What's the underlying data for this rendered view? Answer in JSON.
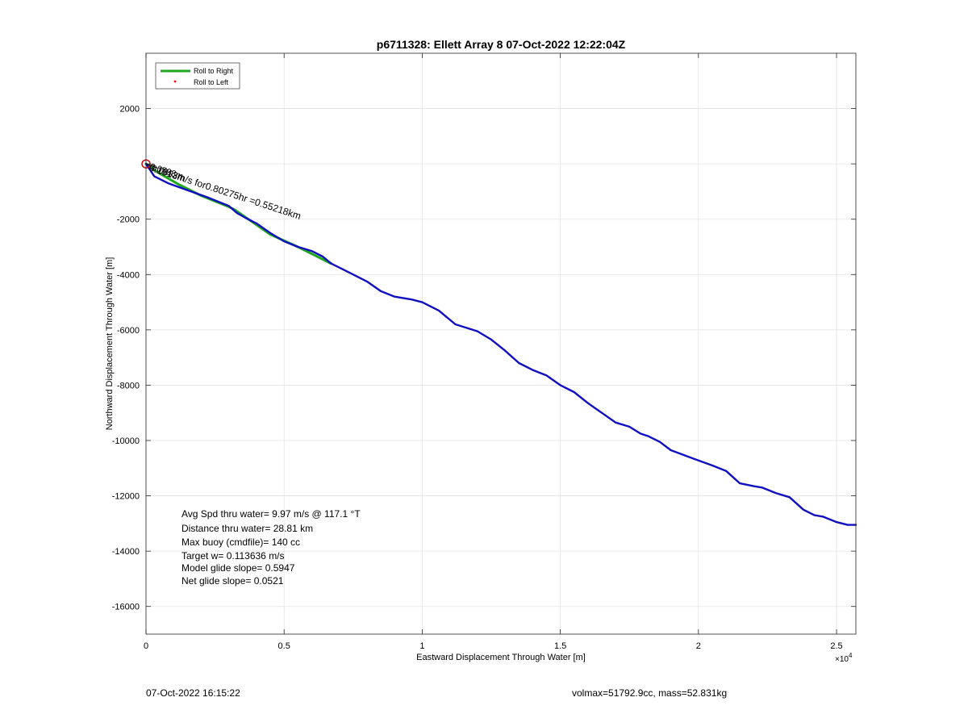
{
  "chart_data": {
    "type": "line",
    "title": "p6711328: Ellett Array 8 07-Oct-2022 12:22:04Z",
    "xlabel": "Eastward Displacement Through Water [m]",
    "ylabel": "Northward Displacement Through Water [m]",
    "x_exponent_label": "×10",
    "x_exponent_power": "4",
    "xlim": [
      0,
      25700
    ],
    "ylim": [
      -17000,
      4000
    ],
    "x_ticks": [
      0,
      5000,
      10000,
      15000,
      20000,
      25000
    ],
    "x_tick_labels": [
      "0",
      "0.5",
      "1",
      "1.5",
      "2",
      "2.5"
    ],
    "y_ticks": [
      -16000,
      -14000,
      -12000,
      -10000,
      -8000,
      -6000,
      -4000,
      -2000,
      0,
      2000
    ],
    "y_tick_labels": [
      "-16000",
      "-14000",
      "-12000",
      "-10000",
      "-8000",
      "-6000",
      "-4000",
      "-2000",
      "",
      "2000"
    ],
    "grid": true,
    "legend_position": "top-left",
    "legend": [
      {
        "label": "Roll to Right",
        "color": "#1fa81f",
        "style": "line"
      },
      {
        "label": "Roll to Left",
        "color": "#ff0000",
        "style": "dot"
      }
    ],
    "series": [
      {
        "color": "#1fa81f",
        "x": [
          0,
          500,
          1200,
          2000,
          3000,
          3200,
          4500,
          5500,
          6700
        ],
        "y": [
          0,
          -350,
          -750,
          -1150,
          -1550,
          -1650,
          -2550,
          -3000,
          -3600
        ]
      },
      {
        "color": "#1010c0",
        "x": [
          0,
          300,
          800,
          1500,
          2200,
          3000,
          3300,
          3600,
          4000,
          4500,
          5000,
          5500,
          6000,
          6400,
          6700,
          7200,
          8000,
          8500,
          9000,
          9600,
          10000,
          10600,
          11200,
          12000,
          12500,
          13000,
          13500,
          14000,
          14500,
          15000,
          15500,
          16000,
          16500,
          17000,
          17500,
          17900,
          18200,
          18600,
          19000,
          19400,
          19800,
          20500,
          21000,
          21500,
          22000,
          22300,
          22800,
          23300,
          23800,
          24200,
          24500,
          25000,
          25400,
          25700
        ],
        "y": [
          0,
          -450,
          -700,
          -950,
          -1200,
          -1520,
          -1780,
          -1950,
          -2150,
          -2500,
          -2800,
          -3000,
          -3150,
          -3350,
          -3600,
          -3850,
          -4250,
          -4600,
          -4800,
          -4900,
          -5000,
          -5300,
          -5800,
          -6050,
          -6350,
          -6750,
          -7200,
          -7450,
          -7650,
          -8000,
          -8250,
          -8650,
          -9000,
          -9350,
          -9500,
          -9750,
          -9850,
          -10050,
          -10350,
          -10500,
          -10650,
          -10900,
          -11100,
          -11550,
          -11650,
          -11700,
          -11900,
          -12050,
          -12500,
          -12700,
          -12750,
          -12950,
          -13050,
          -13050
        ]
      }
    ],
    "start_marker": {
      "x": 0,
      "y": 0,
      "color": "#cc0000"
    },
    "trajectory_annotation": "0.1913m/s for0.80275hr =0.55218km",
    "overlapping_labels": [
      "0.0593m",
      "0.0593m"
    ],
    "stats": [
      "Avg Spd thru water=  9.97 m/s @ 117.1 °T",
      "Distance thru water= 28.81 km",
      "Max buoy (cmdfile)= 140 cc",
      "Target w= 0.113636 m/s",
      "Model glide slope= 0.5947",
      "Net glide slope= 0.0521"
    ]
  },
  "footer": {
    "timestamp": "07-Oct-2022 16:15:22",
    "volmax_mass": "volmax=51792.9cc, mass=52.831kg"
  }
}
